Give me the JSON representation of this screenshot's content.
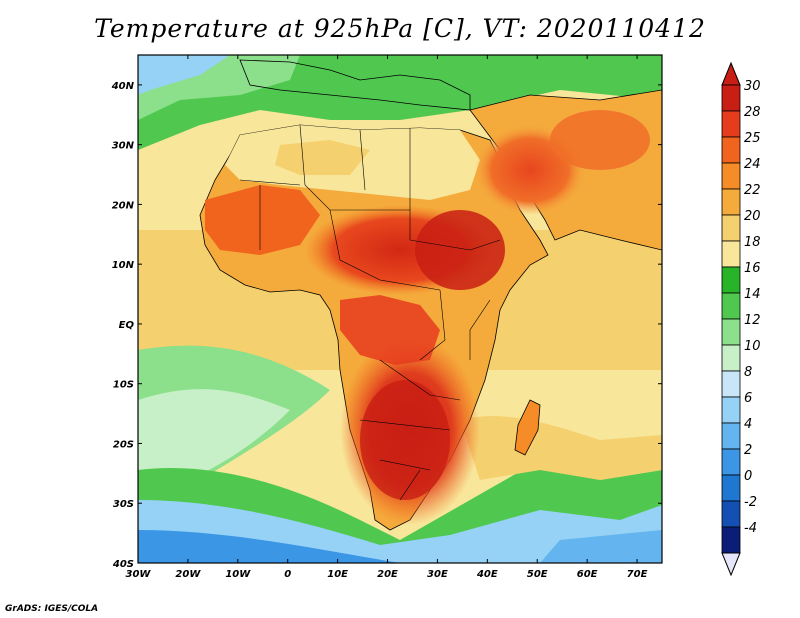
{
  "title": "Temperature at 925hPa [C], VT: 2020110412",
  "credit": "GrADS: IGES/COLA",
  "map": {
    "lon_range": [
      -30,
      75
    ],
    "lat_range": [
      -40,
      45
    ],
    "lon_ticks": [
      {
        "value": -30,
        "label": "30W"
      },
      {
        "value": -20,
        "label": "20W"
      },
      {
        "value": -10,
        "label": "10W"
      },
      {
        "value": 0,
        "label": "0"
      },
      {
        "value": 10,
        "label": "10E"
      },
      {
        "value": 20,
        "label": "20E"
      },
      {
        "value": 30,
        "label": "30E"
      },
      {
        "value": 40,
        "label": "40E"
      },
      {
        "value": 50,
        "label": "50E"
      },
      {
        "value": 60,
        "label": "60E"
      },
      {
        "value": 70,
        "label": "70E"
      }
    ],
    "lat_ticks": [
      {
        "value": 40,
        "label": "40N"
      },
      {
        "value": 30,
        "label": "30N"
      },
      {
        "value": 20,
        "label": "20N"
      },
      {
        "value": 10,
        "label": "10N"
      },
      {
        "value": 0,
        "label": "EQ"
      },
      {
        "value": -10,
        "label": "10S"
      },
      {
        "value": -20,
        "label": "20S"
      },
      {
        "value": -30,
        "label": "30S"
      },
      {
        "value": -40,
        "label": "40S"
      }
    ]
  },
  "colorbar": {
    "units": "C",
    "labels": [
      "30",
      "28",
      "25",
      "24",
      "22",
      "20",
      "18",
      "16",
      "14",
      "12",
      "10",
      "8",
      "6",
      "4",
      "2",
      "0",
      "-2",
      "-4"
    ],
    "colors": [
      "#c81e14",
      "#e63c1e",
      "#f0641e",
      "#f58c28",
      "#f5aa3c",
      "#f5d06e",
      "#f8e69a",
      "#28b428",
      "#50c850",
      "#8ce08c",
      "#c8f0c8",
      "#c8e6f8",
      "#96d2f5",
      "#64b4f0",
      "#3c96e6",
      "#1e78d2",
      "#1450b4",
      "#0a1e78"
    ],
    "top_color": "#c81e14",
    "bottom_color": "#e6e6fa"
  }
}
